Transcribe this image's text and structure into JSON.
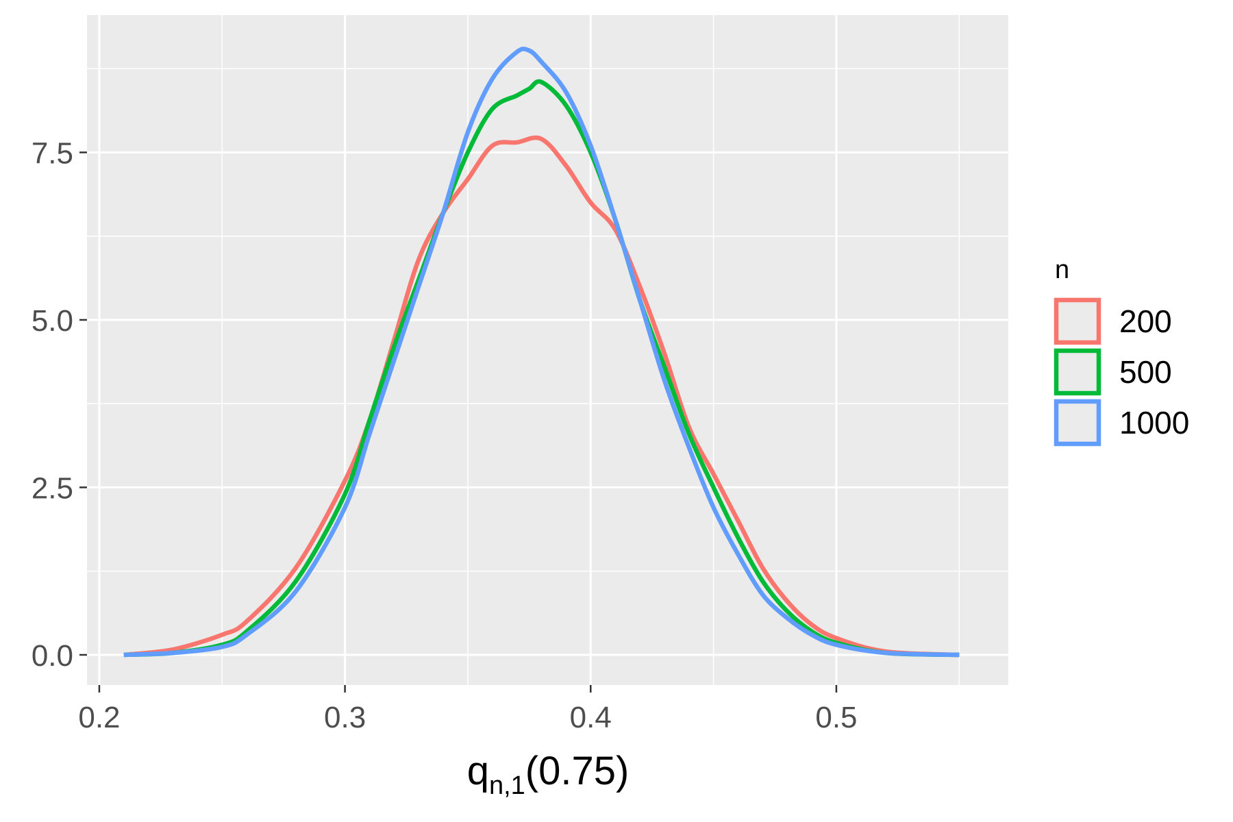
{
  "chart_data": {
    "type": "line",
    "subtype": "density",
    "title": "",
    "xlabel": {
      "base": "q",
      "subscript": "n,1",
      "suffix": "(0.75)"
    },
    "ylabel": "",
    "xlim": [
      0.195,
      0.57
    ],
    "ylim": [
      -0.45,
      9.55
    ],
    "x_ticks": [
      0.2,
      0.3,
      0.4,
      0.5
    ],
    "x_tick_labels": [
      "0.2",
      "0.3",
      "0.4",
      "0.5"
    ],
    "y_ticks": [
      0.0,
      2.5,
      5.0,
      7.5
    ],
    "y_tick_labels": [
      "0.0",
      "2.5",
      "5.0",
      "7.5"
    ],
    "x_minor": [
      0.25,
      0.35,
      0.45,
      0.55
    ],
    "y_minor": [
      1.25,
      3.75,
      6.25,
      8.75
    ],
    "background": "#ebebeb",
    "grid": true,
    "legend": {
      "title": "n",
      "position": "right"
    },
    "series": [
      {
        "name": "200",
        "color": "#f8766d",
        "points": [
          [
            0.21,
            0.0
          ],
          [
            0.23,
            0.08
          ],
          [
            0.25,
            0.3
          ],
          [
            0.26,
            0.5
          ],
          [
            0.28,
            1.3
          ],
          [
            0.3,
            2.6
          ],
          [
            0.31,
            3.5
          ],
          [
            0.32,
            4.7
          ],
          [
            0.33,
            5.9
          ],
          [
            0.34,
            6.6
          ],
          [
            0.35,
            7.1
          ],
          [
            0.36,
            7.6
          ],
          [
            0.37,
            7.65
          ],
          [
            0.38,
            7.7
          ],
          [
            0.39,
            7.3
          ],
          [
            0.4,
            6.75
          ],
          [
            0.41,
            6.35
          ],
          [
            0.42,
            5.5
          ],
          [
            0.43,
            4.5
          ],
          [
            0.44,
            3.4
          ],
          [
            0.45,
            2.7
          ],
          [
            0.46,
            2.0
          ],
          [
            0.47,
            1.3
          ],
          [
            0.48,
            0.8
          ],
          [
            0.49,
            0.45
          ],
          [
            0.5,
            0.25
          ],
          [
            0.52,
            0.05
          ],
          [
            0.55,
            0.0
          ]
        ]
      },
      {
        "name": "500",
        "color": "#00ba38",
        "points": [
          [
            0.21,
            0.0
          ],
          [
            0.23,
            0.03
          ],
          [
            0.25,
            0.15
          ],
          [
            0.26,
            0.35
          ],
          [
            0.28,
            1.1
          ],
          [
            0.3,
            2.4
          ],
          [
            0.31,
            3.5
          ],
          [
            0.32,
            4.6
          ],
          [
            0.33,
            5.6
          ],
          [
            0.34,
            6.6
          ],
          [
            0.35,
            7.5
          ],
          [
            0.36,
            8.15
          ],
          [
            0.37,
            8.35
          ],
          [
            0.375,
            8.45
          ],
          [
            0.38,
            8.55
          ],
          [
            0.39,
            8.2
          ],
          [
            0.4,
            7.5
          ],
          [
            0.41,
            6.5
          ],
          [
            0.42,
            5.3
          ],
          [
            0.43,
            4.3
          ],
          [
            0.44,
            3.3
          ],
          [
            0.45,
            2.5
          ],
          [
            0.46,
            1.75
          ],
          [
            0.47,
            1.1
          ],
          [
            0.48,
            0.65
          ],
          [
            0.49,
            0.35
          ],
          [
            0.5,
            0.18
          ],
          [
            0.52,
            0.03
          ],
          [
            0.55,
            0.0
          ]
        ]
      },
      {
        "name": "1000",
        "color": "#619cff",
        "points": [
          [
            0.21,
            0.0
          ],
          [
            0.23,
            0.03
          ],
          [
            0.25,
            0.12
          ],
          [
            0.26,
            0.3
          ],
          [
            0.28,
            0.95
          ],
          [
            0.3,
            2.2
          ],
          [
            0.31,
            3.3
          ],
          [
            0.32,
            4.4
          ],
          [
            0.33,
            5.5
          ],
          [
            0.34,
            6.6
          ],
          [
            0.35,
            7.8
          ],
          [
            0.36,
            8.6
          ],
          [
            0.37,
            9.0
          ],
          [
            0.375,
            9.02
          ],
          [
            0.38,
            8.85
          ],
          [
            0.39,
            8.4
          ],
          [
            0.4,
            7.6
          ],
          [
            0.41,
            6.5
          ],
          [
            0.42,
            5.3
          ],
          [
            0.43,
            4.1
          ],
          [
            0.44,
            3.1
          ],
          [
            0.45,
            2.2
          ],
          [
            0.46,
            1.5
          ],
          [
            0.47,
            0.9
          ],
          [
            0.48,
            0.55
          ],
          [
            0.49,
            0.3
          ],
          [
            0.5,
            0.15
          ],
          [
            0.52,
            0.03
          ],
          [
            0.55,
            0.0
          ]
        ]
      }
    ]
  }
}
